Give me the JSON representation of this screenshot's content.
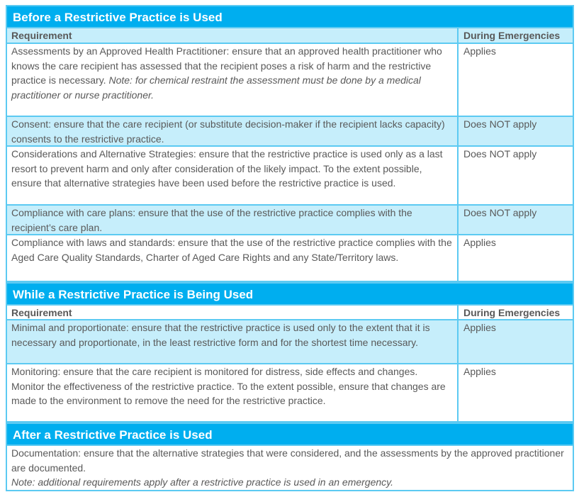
{
  "sections": [
    {
      "title": "Before a Restrictive Practice is Used",
      "col_requirement": "Requirement",
      "col_emergency": "During Emergencies",
      "rows": [
        {
          "text": "Assessments by an Approved Health Practitioner: ensure that an approved health practitioner who knows the care recipient has assessed that the recipient poses a risk of harm and the restrictive practice is necessary. ",
          "note": "Note: for chemical restraint the assessment must be done by a medical practitioner or nurse practitioner.",
          "emergency": "Applies"
        },
        {
          "text": "Consent: ensure that the care recipient (or substitute decision-maker if the recipient lacks capacity) consents to the restrictive practice.",
          "emergency": "Does NOT apply"
        },
        {
          "text": "Considerations and Alternative Strategies: ensure that the restrictive practice is used only as a last resort to prevent harm and only after consideration of the likely impact. To the extent possible, ensure that alternative strategies have been used before the restrictive practice is used.",
          "emergency": "Does NOT apply"
        },
        {
          "text": "Compliance with care plans: ensure that the use of the restrictive practice complies with the recipient’s care plan.",
          "emergency": "Does NOT apply"
        },
        {
          "text": "Compliance with laws and standards: ensure that the use of the restrictive practice complies with the Aged Care Quality Standards, Charter of Aged Care Rights and any State/Territory laws.",
          "emergency": "Applies"
        }
      ]
    },
    {
      "title": "While a Restrictive Practice is Being Used",
      "col_requirement": "Requirement",
      "col_emergency": "During Emergencies",
      "rows": [
        {
          "text": "Minimal and proportionate: ensure that the restrictive practice is used only to the extent that it is necessary and proportionate, in the least restrictive form and for the shortest time necessary.",
          "emergency": "Applies"
        },
        {
          "text": "Monitoring: ensure that the care recipient is monitored for distress, side effects and changes. Monitor the effectiveness of the restrictive practice. To the extent possible, ensure that changes are made to the environment to remove the need for the restrictive practice.",
          "emergency": "Applies"
        }
      ]
    },
    {
      "title": "After a Restrictive Practice is Used",
      "rows": [
        {
          "text": "Documentation: ensure that the alternative strategies that were considered, and the assessments by the approved practitioner are documented.",
          "note": "Note: additional requirements apply after a restrictive practice is used in an emergency."
        }
      ]
    }
  ],
  "colors": {
    "header": "#00aeef",
    "row_alt": "#c6eefb",
    "border": "#5ccaf2"
  }
}
